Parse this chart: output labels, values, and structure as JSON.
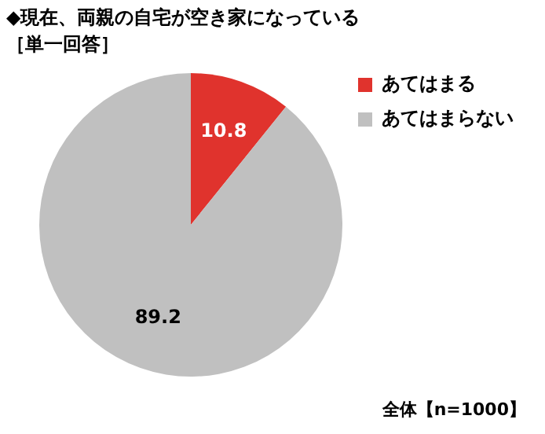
{
  "chart_data": {
    "type": "pie",
    "title": "◆現在、両親の自宅が空き家になっている",
    "subtitle": "［単一回答］",
    "categories": [
      "あてはまる",
      "あてはまらない"
    ],
    "values": [
      10.8,
      89.2
    ],
    "colors": [
      "#e0332d",
      "#c0c0c0"
    ],
    "data_labels": true,
    "legend": "right",
    "annotations": [
      "全体【n=1000】"
    ]
  }
}
